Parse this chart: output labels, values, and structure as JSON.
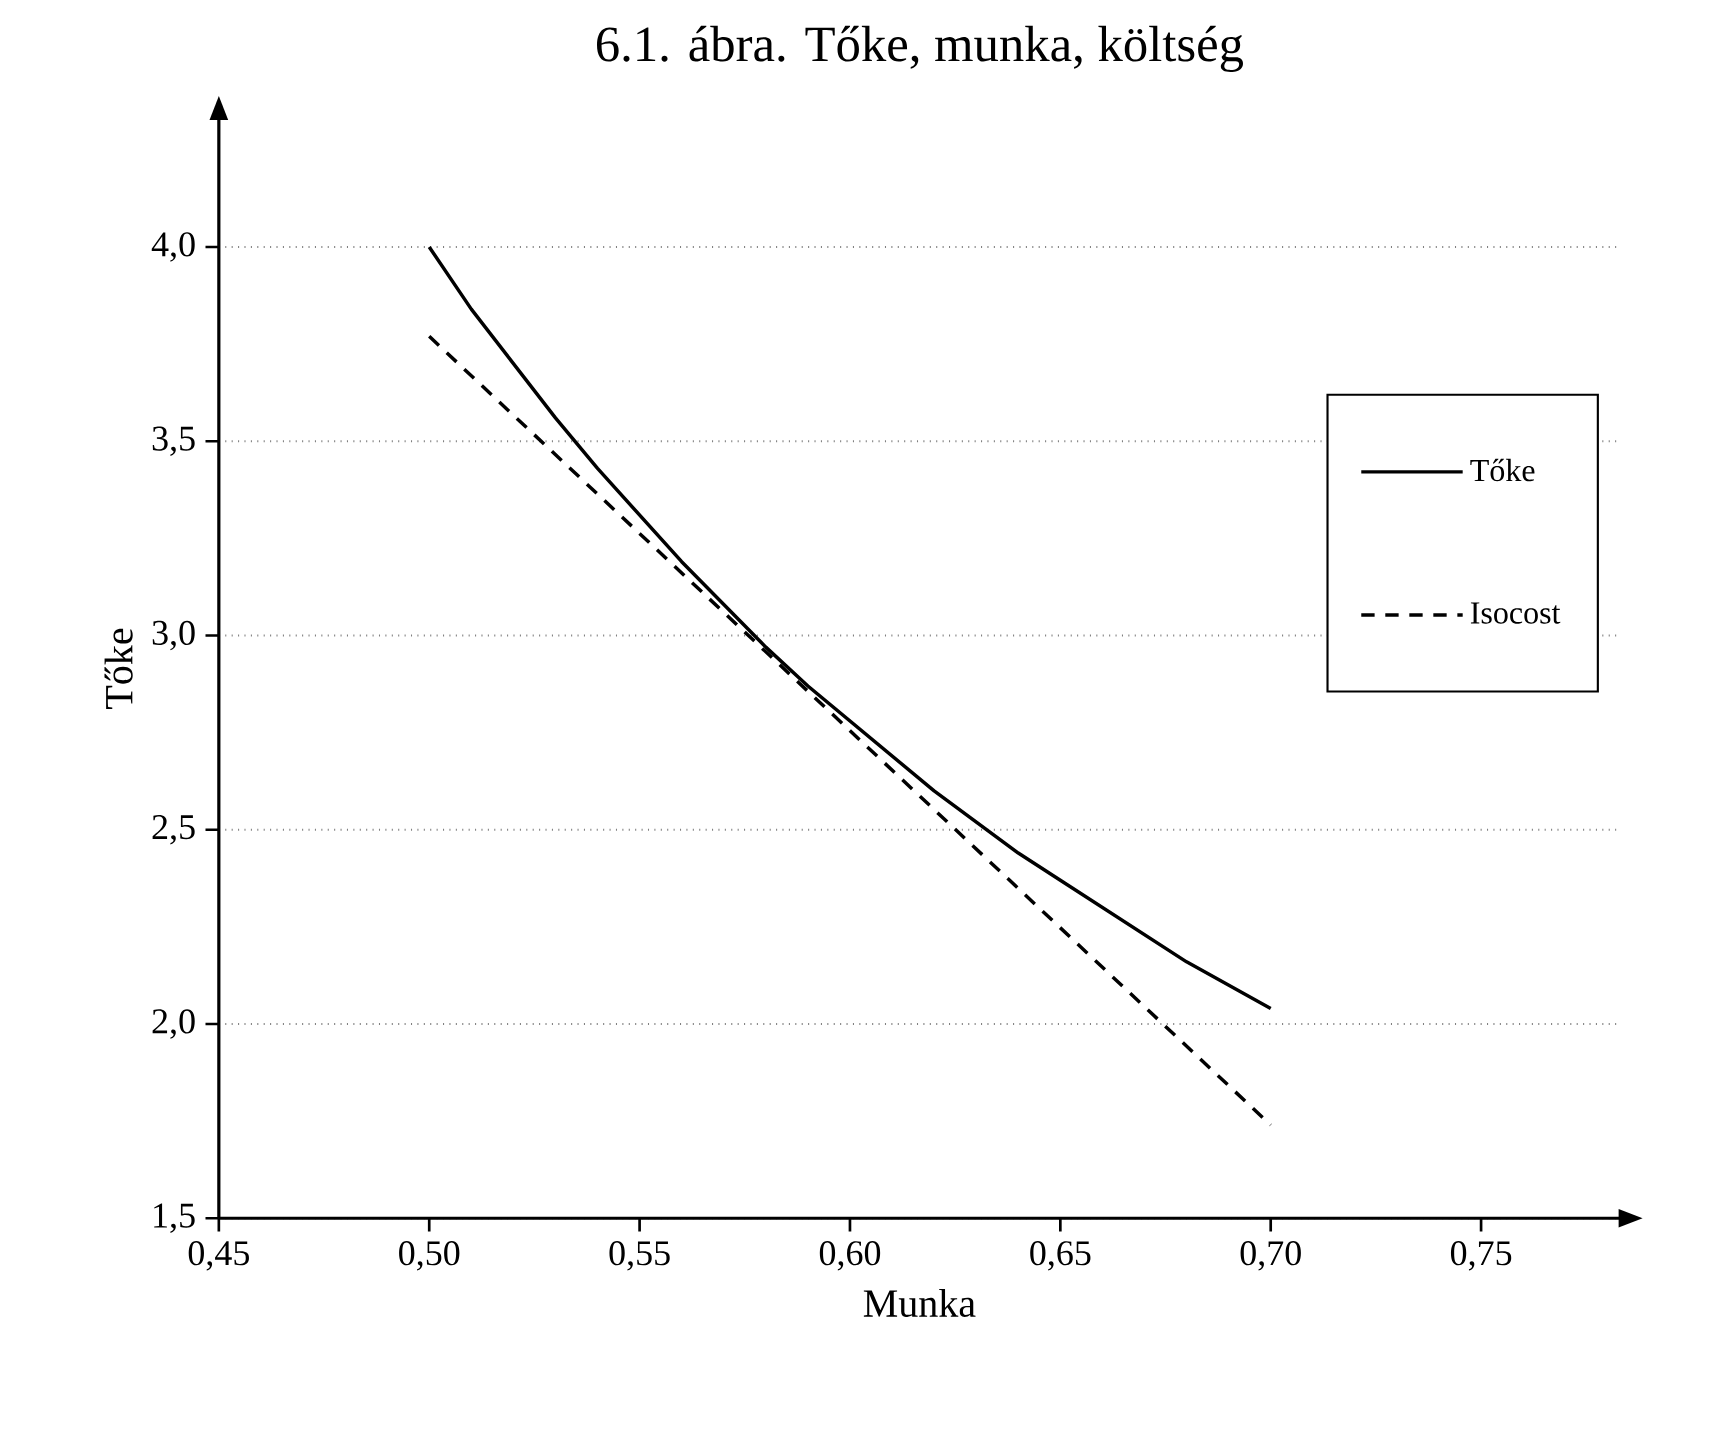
{
  "chart_data": {
    "type": "line",
    "title": "6.1. ábra. Tőke, munka, költség",
    "xlabel": "Munka",
    "ylabel": "Tőke",
    "xlim": [
      0.45,
      0.783
    ],
    "ylim": [
      1.5,
      4.33
    ],
    "xticks": [
      {
        "value": 0.45,
        "label": "0,45"
      },
      {
        "value": 0.5,
        "label": "0,50"
      },
      {
        "value": 0.55,
        "label": "0,55"
      },
      {
        "value": 0.6,
        "label": "0,60"
      },
      {
        "value": 0.65,
        "label": "0,65"
      },
      {
        "value": 0.7,
        "label": "0,70"
      },
      {
        "value": 0.75,
        "label": "0,75"
      }
    ],
    "yticks": [
      {
        "value": 1.5,
        "label": "1,5"
      },
      {
        "value": 2.0,
        "label": "2,0"
      },
      {
        "value": 2.5,
        "label": "2,5"
      },
      {
        "value": 3.0,
        "label": "3,0"
      },
      {
        "value": 3.5,
        "label": "3,5"
      },
      {
        "value": 4.0,
        "label": "4,0"
      }
    ],
    "grid": "y",
    "legend": "right",
    "marker": "none",
    "series": [
      {
        "name": "Tőke",
        "color": "#000000",
        "line_style": "solid",
        "x": [
          0.5,
          0.51,
          0.52,
          0.53,
          0.54,
          0.55,
          0.56,
          0.57,
          0.58,
          0.59,
          0.6,
          0.61,
          0.62,
          0.63,
          0.64,
          0.65,
          0.66,
          0.67,
          0.68,
          0.69,
          0.7
        ],
        "values": [
          4.0,
          3.84,
          3.7,
          3.56,
          3.43,
          3.31,
          3.19,
          3.08,
          2.97,
          2.87,
          2.78,
          2.69,
          2.6,
          2.52,
          2.44,
          2.37,
          2.3,
          2.23,
          2.16,
          2.1,
          2.04
        ]
      },
      {
        "name": "Isocost",
        "color": "#000000",
        "line_style": "dashed",
        "x": [
          0.5,
          0.7
        ],
        "values": [
          3.77,
          1.74
        ]
      }
    ]
  }
}
